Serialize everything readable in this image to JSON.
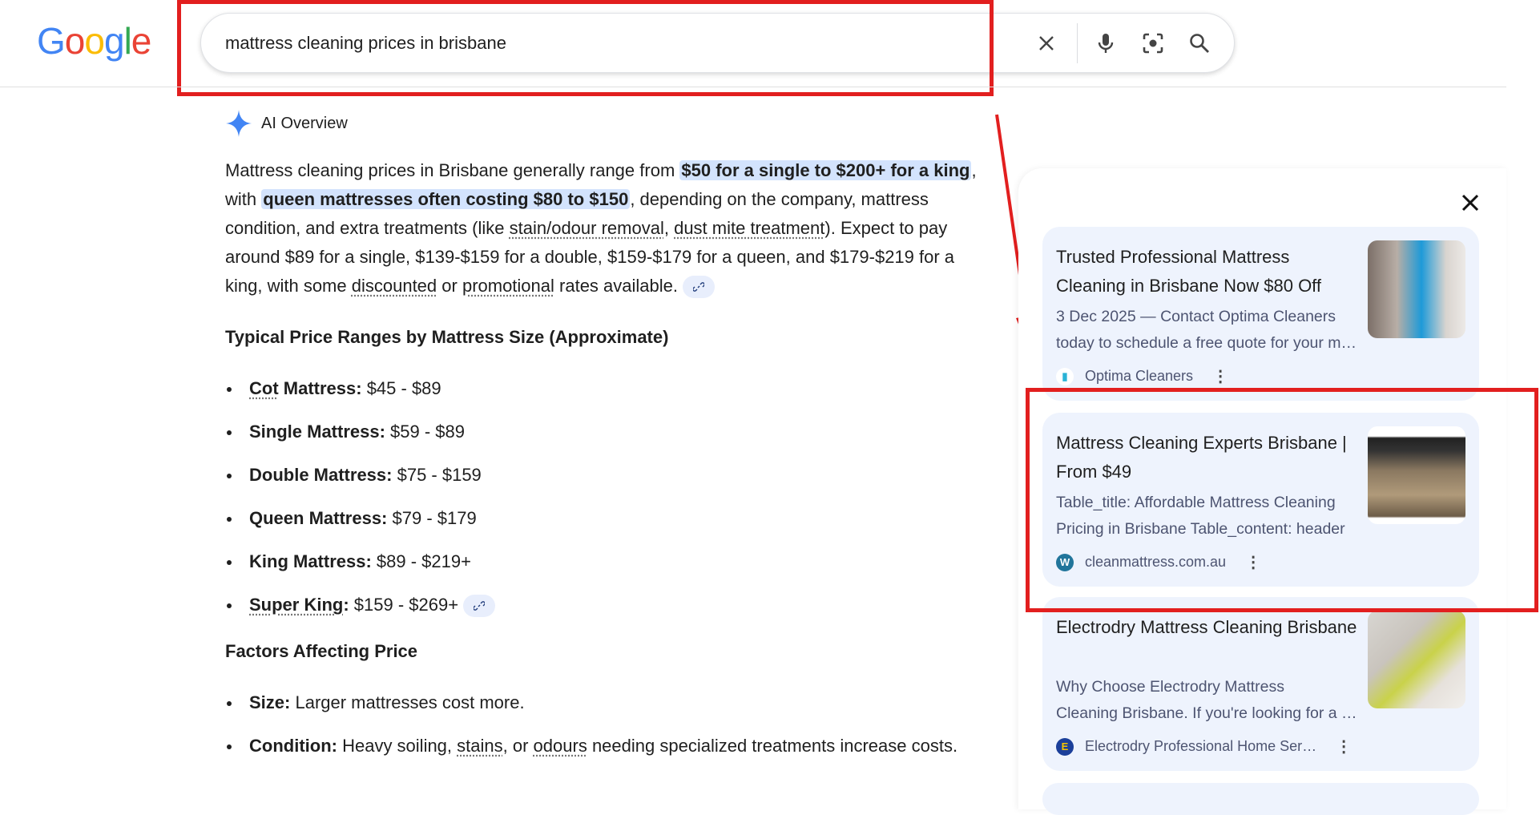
{
  "header": {
    "logo": "Google",
    "query": "mattress cleaning prices in brisbane",
    "icons": [
      "close-icon",
      "mic-icon",
      "lens-icon",
      "search-icon"
    ]
  },
  "ai_overview": {
    "label": "AI Overview",
    "intro": {
      "t1": "Mattress cleaning prices in Brisbane generally range from ",
      "h1": "$50 for a single to $200+ for a king",
      "t2": ", with ",
      "h2": "queen mattresses often costing $80 to $150",
      "t3": ", depending on the company, mattress condition, and extra treatments (like ",
      "u1": "stain/odour removal",
      "t4": ", ",
      "u2": "dust mite treatment",
      "t5": "). Expect to pay around $89 for a single, $139-$159 for a double, $159-$179 for a queen, and $179-$219 for a king, with some ",
      "u3": "discounted",
      "t6": " or ",
      "u4": "promotional",
      "t7": " rates available."
    },
    "heading1": "Typical Price Ranges by Mattress Size (Approximate)",
    "sizes": [
      {
        "label": "Cot",
        "label2": " Mattress:",
        "value": " $45 - $89"
      },
      {
        "label": "Single Mattress:",
        "value": " $59 - $89"
      },
      {
        "label": "Double Mattress:",
        "value": " $75 - $159"
      },
      {
        "label": "Queen Mattress:",
        "value": " $79 - $179"
      },
      {
        "label": "King Mattress:",
        "value": " $89 - $219+"
      },
      {
        "label": "Super King",
        "label2": ":",
        "value": " $159 - $269+"
      }
    ],
    "heading2": "Factors Affecting Price",
    "factors": [
      {
        "label": "Size:",
        "value": " Larger mattresses cost more."
      },
      {
        "label": "Condition:",
        "v1": " Heavy soiling, ",
        "u1": "stains",
        "v2": ", or ",
        "u2": "odours",
        "v3": " needing specialized treatments increase costs."
      }
    ]
  },
  "sources": [
    {
      "title": "Trusted Professional Mattress Cleaning in Brisbane Now $80 Off",
      "snippet1": "3 Dec 2025 — Contact Optima Cleaners",
      "snippet2": "today to schedule a free quote for your mattress cleaning",
      "site": "Optima Cleaners"
    },
    {
      "title": "Mattress Cleaning Experts Brisbane | From $49",
      "snippet1": "Table_title: Affordable Mattress Cleaning",
      "snippet2": "Pricing in Brisbane Table_content: header",
      "site": "cleanmattress.com.au"
    },
    {
      "title": "Electrodry Mattress Cleaning Brisbane",
      "snippet1": "Why Choose Electrodry Mattress",
      "snippet2": "Cleaning Brisbane. If you're looking for a mattress",
      "site": "Electrodry Professional Home Ser…"
    }
  ],
  "colors": {
    "annotation_red": "#e21f1f",
    "highlight": "#d3e3fd",
    "card_bg": "#eef3fd"
  }
}
